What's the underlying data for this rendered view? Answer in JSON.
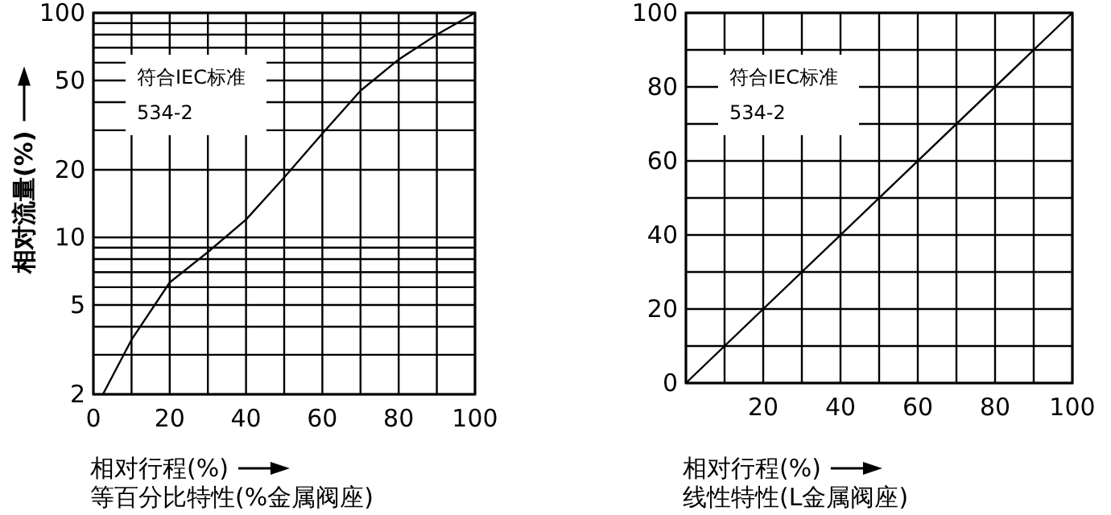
{
  "chart_data": [
    {
      "type": "line",
      "log": "y",
      "xlabel": "相对行程(%)",
      "ylabel": "相对流量(%)",
      "annotations": [
        "符合IEC标准",
        "534-2",
        "等百分比特性(%金属阀座)"
      ],
      "xlim": [
        0,
        100
      ],
      "xticks": [
        0,
        {
          "value": 10,
          "label": null
        },
        20,
        {
          "value": 30,
          "label": null
        },
        40,
        {
          "value": 50,
          "label": null
        },
        60,
        {
          "value": 70,
          "label": null
        },
        80,
        {
          "value": 90,
          "label": null
        },
        100
      ],
      "ylim": [
        2,
        100
      ],
      "yticks": [
        2,
        {
          "value": 3,
          "label": null
        },
        {
          "value": 4,
          "label": null
        },
        5,
        {
          "value": 6,
          "label": null
        },
        {
          "value": 7,
          "label": null
        },
        {
          "value": 8,
          "label": null
        },
        {
          "value": 9,
          "label": null
        },
        10,
        20,
        {
          "value": 30,
          "label": null
        },
        {
          "value": 40,
          "label": null
        },
        50,
        {
          "value": 60,
          "label": null
        },
        {
          "value": 70,
          "label": null
        },
        {
          "value": 80,
          "label": null
        },
        {
          "value": 90,
          "label": null
        },
        100
      ],
      "grid": true,
      "series": [
        {
          "color": "#000000",
          "x": [
            2.5,
            10,
            20,
            30,
            40,
            50,
            60,
            70,
            80,
            90,
            100
          ],
          "values": [
            2,
            3.5,
            6.3,
            8.6,
            12,
            18.5,
            29,
            45,
            62,
            80,
            100
          ]
        }
      ]
    },
    {
      "type": "line",
      "xlabel": "相对行程(%)",
      "annotations": [
        "符合IEC标准",
        "534-2",
        "线性特性(L金属阀座)"
      ],
      "xlim": [
        0,
        100
      ],
      "xticks": [
        {
          "value": 0,
          "label": null
        },
        {
          "value": 10,
          "label": null
        },
        20,
        {
          "value": 30,
          "label": null
        },
        40,
        {
          "value": 50,
          "label": null
        },
        60,
        {
          "value": 70,
          "label": null
        },
        80,
        {
          "value": 90,
          "label": null
        },
        100
      ],
      "ylim": [
        0,
        100
      ],
      "yticks": [
        0,
        {
          "value": 10,
          "label": null
        },
        20,
        {
          "value": 30,
          "label": null
        },
        40,
        {
          "value": 50,
          "label": null
        },
        60,
        {
          "value": 70,
          "label": null
        },
        80,
        {
          "value": 90,
          "label": null
        },
        100
      ],
      "grid": true,
      "series": [
        {
          "color": "#000000",
          "x": [
            0,
            100
          ],
          "values": [
            0,
            100
          ]
        }
      ]
    }
  ]
}
